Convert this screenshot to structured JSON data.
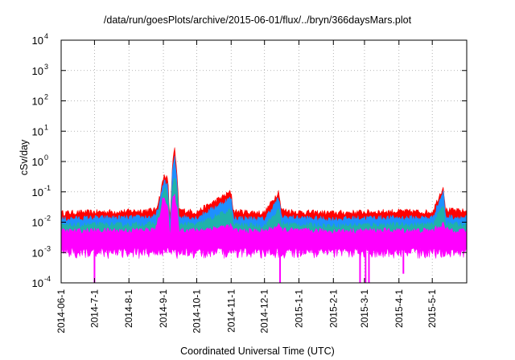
{
  "chart_data": {
    "type": "line",
    "title": "/data/run/goesPlots/archive/2015-06-01/flux/../bryn/366daysMars.plot",
    "xlabel": "Coordinated Universal Time (UTC)",
    "ylabel": "cSv/day",
    "y_scale": "log",
    "ylim": [
      0.0001,
      10000
    ],
    "y_ticks": [
      {
        "value": 0.0001,
        "base": "10",
        "exp": "-4"
      },
      {
        "value": 0.001,
        "base": "10",
        "exp": "-3"
      },
      {
        "value": 0.01,
        "base": "10",
        "exp": "-2"
      },
      {
        "value": 0.1,
        "base": "10",
        "exp": "-1"
      },
      {
        "value": 1,
        "base": "10",
        "exp": "0"
      },
      {
        "value": 10,
        "base": "10",
        "exp": "1"
      },
      {
        "value": 100,
        "base": "10",
        "exp": "2"
      },
      {
        "value": 1000,
        "base": "10",
        "exp": "3"
      },
      {
        "value": 10000,
        "base": "10",
        "exp": "4"
      }
    ],
    "xlim": [
      "2014-06-01",
      "2015-06-01"
    ],
    "x_ticks": [
      "2014-06-1",
      "2014-7-1",
      "2014-8-1",
      "2014-9-1",
      "2014-10-1",
      "2014-11-1",
      "2014-12-1",
      "2015-1-1",
      "2015-2-1",
      "2015-3-1",
      "2015-4-1",
      "2015-5-1"
    ],
    "x_tick_dates": [
      "2014-06-01",
      "2014-07-01",
      "2014-08-01",
      "2014-09-01",
      "2014-10-01",
      "2014-11-01",
      "2014-12-01",
      "2015-01-01",
      "2015-02-01",
      "2015-03-01",
      "2015-04-01",
      "2015-05-01"
    ],
    "grid": true,
    "series": [
      {
        "color": "#ff0000",
        "points": [
          [
            "2014-06-01",
            0.016
          ],
          [
            "2014-07-01",
            0.017
          ],
          [
            "2014-08-01",
            0.018
          ],
          [
            "2014-08-25",
            0.02
          ],
          [
            "2014-08-29",
            0.06
          ],
          [
            "2014-08-31",
            0.15
          ],
          [
            "2014-09-02",
            0.3
          ],
          [
            "2014-09-05",
            0.2
          ],
          [
            "2014-09-07",
            0.008
          ],
          [
            "2014-09-09",
            0.5
          ],
          [
            "2014-09-11",
            2.3
          ],
          [
            "2014-09-13",
            0.4
          ],
          [
            "2014-09-15",
            0.02
          ],
          [
            "2014-10-01",
            0.017
          ],
          [
            "2014-11-01",
            0.08
          ],
          [
            "2014-11-03",
            0.018
          ],
          [
            "2014-12-01",
            0.016
          ],
          [
            "2014-12-14",
            0.085
          ],
          [
            "2014-12-16",
            0.02
          ],
          [
            "2015-01-01",
            0.017
          ],
          [
            "2015-02-01",
            0.016
          ],
          [
            "2015-03-01",
            0.017
          ],
          [
            "2015-04-01",
            0.018
          ],
          [
            "2015-05-01",
            0.017
          ],
          [
            "2015-05-11",
            0.12
          ],
          [
            "2015-05-13",
            0.02
          ],
          [
            "2015-06-01",
            0.018
          ]
        ]
      },
      {
        "color": "#1e90ff",
        "points": [
          [
            "2014-06-01",
            0.01
          ],
          [
            "2014-07-01",
            0.011
          ],
          [
            "2014-08-01",
            0.011
          ],
          [
            "2014-08-25",
            0.012
          ],
          [
            "2014-08-29",
            0.04
          ],
          [
            "2014-08-31",
            0.1
          ],
          [
            "2014-09-02",
            0.2
          ],
          [
            "2014-09-05",
            0.12
          ],
          [
            "2014-09-07",
            0.005
          ],
          [
            "2014-09-09",
            0.3
          ],
          [
            "2014-09-11",
            1.2
          ],
          [
            "2014-09-13",
            0.25
          ],
          [
            "2014-09-15",
            0.012
          ],
          [
            "2014-10-01",
            0.011
          ],
          [
            "2014-11-01",
            0.05
          ],
          [
            "2014-11-03",
            0.011
          ],
          [
            "2014-12-01",
            0.01
          ],
          [
            "2014-12-14",
            0.05
          ],
          [
            "2014-12-16",
            0.012
          ],
          [
            "2015-01-01",
            0.011
          ],
          [
            "2015-02-01",
            0.01
          ],
          [
            "2015-03-01",
            0.011
          ],
          [
            "2015-04-01",
            0.011
          ],
          [
            "2015-05-01",
            0.011
          ],
          [
            "2015-05-11",
            0.08
          ],
          [
            "2015-05-13",
            0.012
          ],
          [
            "2015-06-01",
            0.011
          ]
        ]
      },
      {
        "color": "#20b2aa",
        "points": [
          [
            "2014-06-01",
            0.006
          ],
          [
            "2014-07-01",
            0.0065
          ],
          [
            "2014-08-01",
            0.0065
          ],
          [
            "2014-08-25",
            0.007
          ],
          [
            "2014-08-29",
            0.025
          ],
          [
            "2014-08-31",
            0.06
          ],
          [
            "2014-09-02",
            0.1
          ],
          [
            "2014-09-05",
            0.07
          ],
          [
            "2014-09-07",
            0.003
          ],
          [
            "2014-09-09",
            0.1
          ],
          [
            "2014-09-11",
            0.3
          ],
          [
            "2014-09-13",
            0.1
          ],
          [
            "2014-09-15",
            0.007
          ],
          [
            "2014-10-01",
            0.0065
          ],
          [
            "2014-11-01",
            0.02
          ],
          [
            "2014-11-03",
            0.0065
          ],
          [
            "2014-12-01",
            0.006
          ],
          [
            "2014-12-14",
            0.02
          ],
          [
            "2014-12-16",
            0.007
          ],
          [
            "2015-01-01",
            0.0065
          ],
          [
            "2015-02-01",
            0.006
          ],
          [
            "2015-03-01",
            0.0065
          ],
          [
            "2015-04-01",
            0.0065
          ],
          [
            "2015-05-01",
            0.0065
          ],
          [
            "2015-05-11",
            0.03
          ],
          [
            "2015-05-13",
            0.007
          ],
          [
            "2015-06-01",
            0.0065
          ]
        ]
      },
      {
        "color": "#ff00ff",
        "points": [
          [
            "2014-06-01",
            0.004
          ],
          [
            "2014-07-01",
            0.0042
          ],
          [
            "2014-08-01",
            0.0042
          ],
          [
            "2014-08-25",
            0.0045
          ],
          [
            "2014-08-29",
            0.015
          ],
          [
            "2014-08-31",
            0.04
          ],
          [
            "2014-09-02",
            0.05
          ],
          [
            "2014-09-05",
            0.03
          ],
          [
            "2014-09-07",
            0.002
          ],
          [
            "2014-09-09",
            0.04
          ],
          [
            "2014-09-11",
            0.06
          ],
          [
            "2014-09-13",
            0.03
          ],
          [
            "2014-09-15",
            0.0045
          ],
          [
            "2014-10-01",
            0.0042
          ],
          [
            "2014-11-01",
            0.006
          ],
          [
            "2014-11-03",
            0.0042
          ],
          [
            "2014-12-01",
            0.004
          ],
          [
            "2014-12-14",
            0.006
          ],
          [
            "2014-12-16",
            0.0045
          ],
          [
            "2015-01-01",
            0.0042
          ],
          [
            "2015-02-01",
            0.004
          ],
          [
            "2015-03-01",
            0.0042
          ],
          [
            "2015-04-01",
            0.0042
          ],
          [
            "2015-05-01",
            0.0042
          ],
          [
            "2015-05-11",
            0.007
          ],
          [
            "2015-05-13",
            0.0045
          ],
          [
            "2015-06-01",
            0.0042
          ]
        ]
      }
    ],
    "magenta_floor": 0.0009,
    "dropouts": [
      {
        "date": "2014-07-01",
        "value": 0.0001
      },
      {
        "date": "2014-12-15",
        "value": 0.0001
      },
      {
        "date": "2015-02-25",
        "value": 0.0001
      },
      {
        "date": "2015-03-02",
        "value": 0.0001
      },
      {
        "date": "2015-03-05",
        "value": 0.0001
      },
      {
        "date": "2015-04-05",
        "value": 0.0002
      }
    ]
  }
}
